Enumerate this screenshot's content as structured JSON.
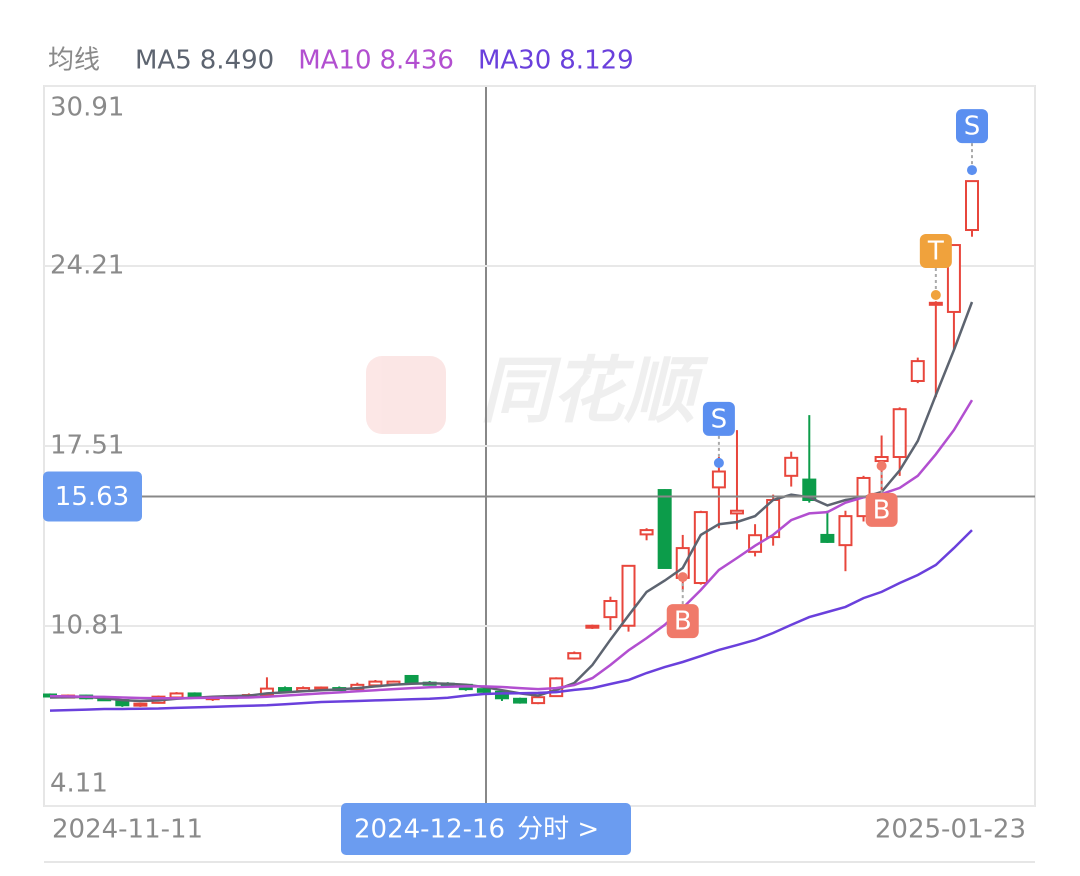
{
  "chart_data": {
    "type": "candlestick",
    "legend_title": "均线",
    "watermark": "同花顺",
    "categories": [
      "2024-11-11",
      null,
      null,
      null,
      null,
      null,
      null,
      null,
      null,
      null,
      null,
      null,
      null,
      null,
      null,
      null,
      null,
      null,
      null,
      null,
      null,
      null,
      null,
      null,
      null,
      null,
      null,
      null,
      null,
      null,
      null,
      null,
      null,
      null,
      null,
      null,
      null,
      null,
      null,
      null,
      null,
      null,
      null,
      null,
      null,
      null,
      null,
      null,
      null,
      null,
      null,
      "2025-01-23"
    ],
    "open": [
      8.26,
      8.2,
      8.22,
      8.12,
      8.05,
      7.86,
      7.95,
      8.15,
      8.3,
      8.12,
      8.16,
      8.2,
      8.24,
      8.5,
      8.4,
      8.48,
      8.5,
      8.46,
      8.6,
      8.64,
      8.95,
      8.7,
      8.66,
      8.62,
      8.46,
      8.36,
      8.1,
      7.94,
      8.2,
      9.6,
      10.76,
      11.14,
      10.82,
      14.22,
      15.87,
      12.6,
      12.41,
      15.97,
      15.0,
      13.57,
      14.12,
      16.4,
      16.26,
      14.2,
      13.82,
      14.9,
      16.95,
      17.1,
      19.93,
      22.78,
      22.5,
      25.55
    ],
    "high": [
      8.3,
      8.26,
      8.25,
      8.18,
      8.08,
      7.95,
      8.22,
      8.35,
      8.34,
      8.2,
      8.24,
      8.3,
      8.9,
      8.56,
      8.56,
      8.56,
      8.56,
      8.7,
      8.8,
      8.78,
      8.98,
      8.76,
      8.72,
      8.66,
      8.5,
      8.4,
      8.14,
      8.22,
      8.9,
      9.86,
      10.86,
      11.9,
      13.05,
      14.45,
      15.9,
      14.2,
      15.1,
      17.1,
      18.1,
      14.6,
      15.7,
      17.3,
      18.66,
      15.1,
      15.1,
      16.4,
      17.9,
      18.95,
      20.8,
      22.9,
      25.0,
      27.37
    ],
    "low": [
      8.18,
      8.14,
      8.08,
      8.05,
      7.8,
      7.8,
      7.92,
      8.1,
      8.1,
      8.02,
      8.1,
      8.14,
      8.2,
      8.36,
      8.36,
      8.4,
      8.42,
      8.4,
      8.56,
      8.58,
      8.7,
      8.6,
      8.58,
      8.4,
      8.3,
      8.02,
      7.92,
      7.9,
      8.18,
      9.56,
      10.7,
      10.66,
      10.6,
      14.0,
      12.95,
      12.15,
      12.35,
      14.45,
      14.4,
      13.4,
      13.8,
      16.0,
      15.4,
      13.9,
      12.85,
      14.7,
      14.8,
      16.4,
      19.85,
      19.33,
      21.08,
      25.3
    ],
    "close": [
      8.2,
      8.22,
      8.12,
      8.1,
      7.86,
      7.92,
      8.18,
      8.3,
      8.14,
      8.16,
      8.2,
      8.24,
      8.48,
      8.4,
      8.5,
      8.52,
      8.46,
      8.62,
      8.74,
      8.74,
      8.72,
      8.66,
      8.62,
      8.46,
      8.36,
      8.12,
      7.96,
      8.16,
      8.86,
      9.8,
      10.82,
      11.74,
      13.05,
      14.38,
      12.97,
      13.71,
      15.05,
      16.56,
      15.1,
      14.19,
      15.5,
      17.07,
      15.5,
      13.94,
      14.9,
      16.32,
      17.1,
      18.88,
      20.67,
      22.84,
      24.99,
      27.37
    ],
    "up_color": "#e8463c",
    "down_color": "#0c9c4a",
    "series": [
      {
        "name": "MA5",
        "legend_value": "8.490",
        "color": "#5d6470",
        "values": [
          8.15,
          8.16,
          8.17,
          8.12,
          8.05,
          8.02,
          8.04,
          8.1,
          8.14,
          8.18,
          8.2,
          8.22,
          8.3,
          8.34,
          8.38,
          8.42,
          8.45,
          8.5,
          8.56,
          8.62,
          8.66,
          8.68,
          8.66,
          8.62,
          8.54,
          8.42,
          8.3,
          8.22,
          8.43,
          8.69,
          9.36,
          10.3,
          11.2,
          12.08,
          12.5,
          12.97,
          14.2,
          14.6,
          14.68,
          14.9,
          15.5,
          15.7,
          15.6,
          15.3,
          15.5,
          15.6,
          15.8,
          16.6,
          17.7,
          19.4,
          21.08,
          22.87
        ]
      },
      {
        "name": "MA10",
        "legend_value": "8.436",
        "color": "#b24fd0",
        "values": [
          8.2,
          8.19,
          8.18,
          8.17,
          8.15,
          8.13,
          8.12,
          8.12,
          8.13,
          8.14,
          8.14,
          8.15,
          8.18,
          8.22,
          8.26,
          8.3,
          8.34,
          8.38,
          8.42,
          8.46,
          8.5,
          8.53,
          8.55,
          8.56,
          8.56,
          8.54,
          8.5,
          8.46,
          8.5,
          8.61,
          8.87,
          9.36,
          9.9,
          10.36,
          10.85,
          11.48,
          12.15,
          12.9,
          13.34,
          13.8,
          14.2,
          14.75,
          15.0,
          15.05,
          15.4,
          15.6,
          15.72,
          15.95,
          16.4,
          17.2,
          18.1,
          19.22
        ]
      },
      {
        "name": "MA30",
        "legend_value": "8.129",
        "color": "#6a40dc",
        "values": [
          7.66,
          7.68,
          7.7,
          7.72,
          7.72,
          7.73,
          7.74,
          7.76,
          7.78,
          7.8,
          7.82,
          7.84,
          7.86,
          7.9,
          7.94,
          7.98,
          8.0,
          8.02,
          8.04,
          8.06,
          8.08,
          8.1,
          8.14,
          8.22,
          8.28,
          8.3,
          8.31,
          8.32,
          8.35,
          8.43,
          8.5,
          8.65,
          8.8,
          9.06,
          9.28,
          9.47,
          9.69,
          9.92,
          10.1,
          10.29,
          10.55,
          10.85,
          11.14,
          11.33,
          11.52,
          11.85,
          12.08,
          12.41,
          12.71,
          13.08,
          13.71,
          14.38
        ]
      }
    ],
    "signals": [
      {
        "label": "B",
        "at": 35,
        "price": 12.63,
        "color": "#f07a6a"
      },
      {
        "label": "S",
        "at": 37,
        "price": 16.88,
        "color": "#5b8ff0"
      },
      {
        "label": "B",
        "at": 46,
        "price": 16.77,
        "color": "#f07a6a"
      },
      {
        "label": "T",
        "at": 49,
        "price": 23.13,
        "color": "#f0a23c"
      },
      {
        "label": "S",
        "at": 51,
        "price": 27.78,
        "color": "#5b8ff0"
      }
    ],
    "crosshair": {
      "date": "2024-12-16",
      "link": "分时 >",
      "price": 15.63
    },
    "ylim": [
      4.11,
      30.91
    ],
    "yticks": [
      4.11,
      10.81,
      17.51,
      24.21,
      30.91
    ],
    "grid": true
  }
}
